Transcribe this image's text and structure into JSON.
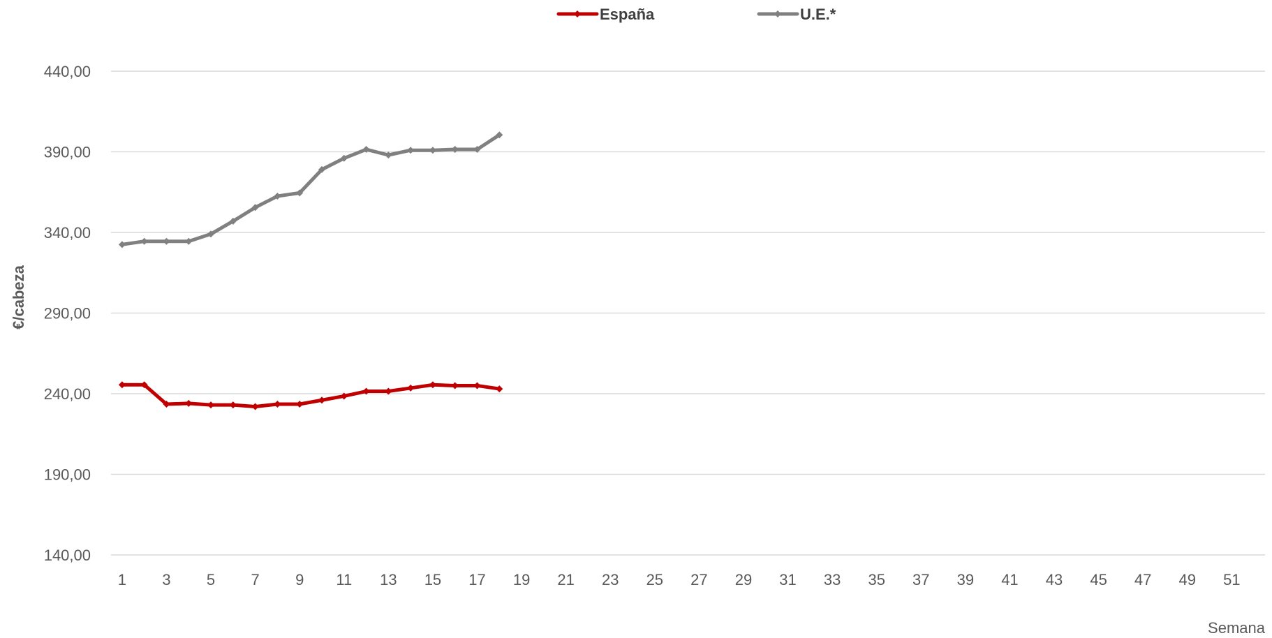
{
  "chart_data": {
    "type": "line",
    "title": "",
    "xlabel": "Semana",
    "ylabel": "€/cabeza",
    "ylim": [
      140,
      440
    ],
    "yticks": [
      "140,00",
      "190,00",
      "240,00",
      "290,00",
      "340,00",
      "390,00",
      "440,00"
    ],
    "x_range": [
      1,
      52
    ],
    "xticks": [
      "1",
      "3",
      "5",
      "7",
      "9",
      "11",
      "13",
      "15",
      "17",
      "19",
      "21",
      "23",
      "25",
      "27",
      "29",
      "31",
      "33",
      "35",
      "37",
      "39",
      "41",
      "43",
      "45",
      "47",
      "49",
      "51"
    ],
    "grid": "horizontal",
    "legend": "top-center",
    "series": [
      {
        "name": "España",
        "color": "#c00000",
        "x": [
          1,
          2,
          3,
          4,
          5,
          6,
          7,
          8,
          9,
          10,
          11,
          12,
          13,
          14,
          15,
          16,
          17,
          18
        ],
        "values": [
          245.5,
          245.5,
          233.5,
          234,
          233,
          233,
          232,
          233.5,
          233.5,
          236,
          238.5,
          241.5,
          241.5,
          243.5,
          245.5,
          245,
          245,
          243
        ]
      },
      {
        "name": "U.E.*",
        "color": "#808080",
        "x": [
          1,
          2,
          3,
          4,
          5,
          6,
          7,
          8,
          9,
          10,
          11,
          12,
          13,
          14,
          15,
          16,
          17,
          18
        ],
        "values": [
          332.5,
          334.5,
          334.5,
          334.5,
          339,
          347,
          355.5,
          362.5,
          364.5,
          379,
          386,
          391.5,
          388,
          391,
          391,
          391.5,
          391.5,
          400.5
        ]
      }
    ]
  }
}
